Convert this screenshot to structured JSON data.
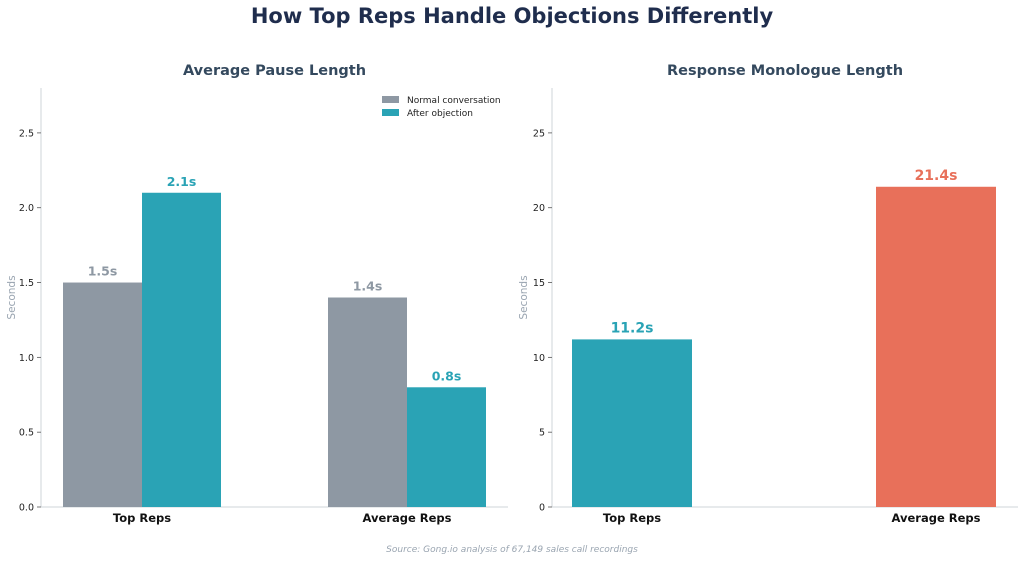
{
  "figure": {
    "title": "How Top Reps Handle Objections Differently",
    "source": "Source: Gong.io analysis of 67,149 sales call recordings"
  },
  "colors": {
    "title": "#1f2d4d",
    "subtitle": "#34495e",
    "gray_bar": "#8e98a3",
    "teal_bar": "#2aa3b5",
    "coral_bar": "#e8705a",
    "axis": "#cfd4d9",
    "axis_label": "#9aa5b1",
    "tick_text": "#222222",
    "source_text": "#9aa5b1"
  },
  "chart_data": [
    {
      "type": "bar",
      "title": "Average Pause Length",
      "ylabel": "Seconds",
      "xlabel": "",
      "categories": [
        "Top Reps",
        "Average Reps"
      ],
      "ylim": [
        0,
        2.8
      ],
      "yticks": [
        0.0,
        0.5,
        1.0,
        1.5,
        2.0,
        2.5
      ],
      "ytick_labels": [
        "0.0",
        "0.5",
        "1.0",
        "1.5",
        "2.0",
        "2.5"
      ],
      "grid": false,
      "legend_position": "top-right",
      "series": [
        {
          "name": "Normal conversation",
          "values": [
            1.5,
            1.4
          ],
          "labels": [
            "1.5s",
            "1.4s"
          ],
          "color": "#8e98a3"
        },
        {
          "name": "After objection",
          "values": [
            2.1,
            0.8
          ],
          "labels": [
            "2.1s",
            "0.8s"
          ],
          "color": "#2aa3b5"
        }
      ]
    },
    {
      "type": "bar",
      "title": "Response Monologue Length",
      "ylabel": "Seconds",
      "xlabel": "",
      "categories": [
        "Top Reps",
        "Average Reps"
      ],
      "ylim": [
        0,
        28
      ],
      "yticks": [
        0,
        5,
        10,
        15,
        20,
        25
      ],
      "ytick_labels": [
        "0",
        "5",
        "10",
        "15",
        "20",
        "25"
      ],
      "grid": false,
      "values": [
        11.2,
        21.4
      ],
      "labels": [
        "11.2s",
        "21.4s"
      ],
      "bar_colors": [
        "#2aa3b5",
        "#e8705a"
      ]
    }
  ]
}
